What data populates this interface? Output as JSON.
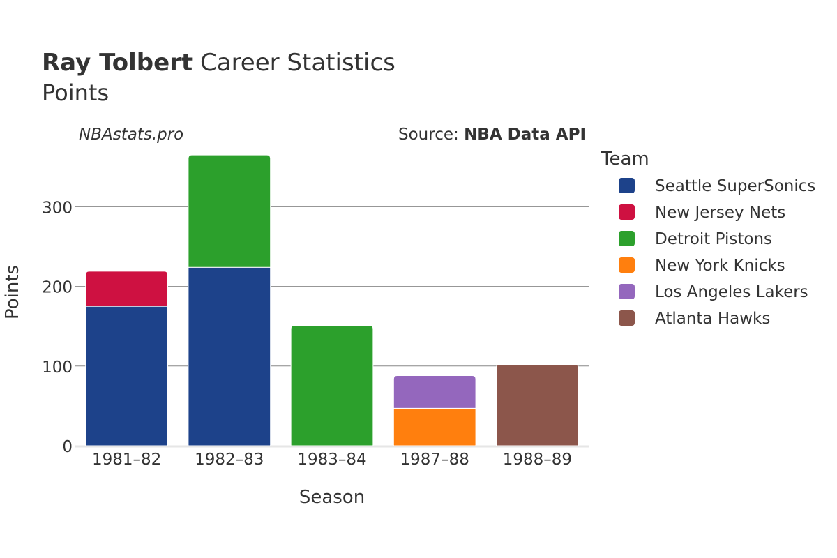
{
  "chart_data": {
    "type": "bar",
    "stacked": true,
    "title_bold": "Ray Tolbert",
    "title_rest": " Career Statistics",
    "subtitle": "Points",
    "watermark": "NBAstats.pro",
    "source_prefix": "Source: ",
    "source_name": "NBA Data API",
    "xlabel": "Season",
    "ylabel": "Points",
    "ylim": [
      0,
      365
    ],
    "yticks": [
      0,
      100,
      200,
      300
    ],
    "grid": true,
    "legend_title": "Team",
    "legend_position": "right",
    "categories": [
      "1981–82",
      "1982–83",
      "1983–84",
      "1987–88",
      "1988–89"
    ],
    "series": [
      {
        "name": "Seattle SuperSonics",
        "color": "#1d428a",
        "values": [
          175,
          224,
          0,
          0,
          0
        ]
      },
      {
        "name": "New Jersey Nets",
        "color": "#ce1141",
        "values": [
          44,
          0,
          0,
          0,
          0
        ]
      },
      {
        "name": "Detroit Pistons",
        "color": "#2ca02c",
        "values": [
          0,
          141,
          151,
          0,
          0
        ]
      },
      {
        "name": "New York Knicks",
        "color": "#ff7f0e",
        "values": [
          0,
          0,
          0,
          47,
          0
        ]
      },
      {
        "name": "Los Angeles Lakers",
        "color": "#9467bd",
        "values": [
          0,
          0,
          0,
          41,
          0
        ]
      },
      {
        "name": "Atlanta Hawks",
        "color": "#8c564b",
        "values": [
          0,
          0,
          0,
          0,
          102
        ]
      }
    ]
  }
}
